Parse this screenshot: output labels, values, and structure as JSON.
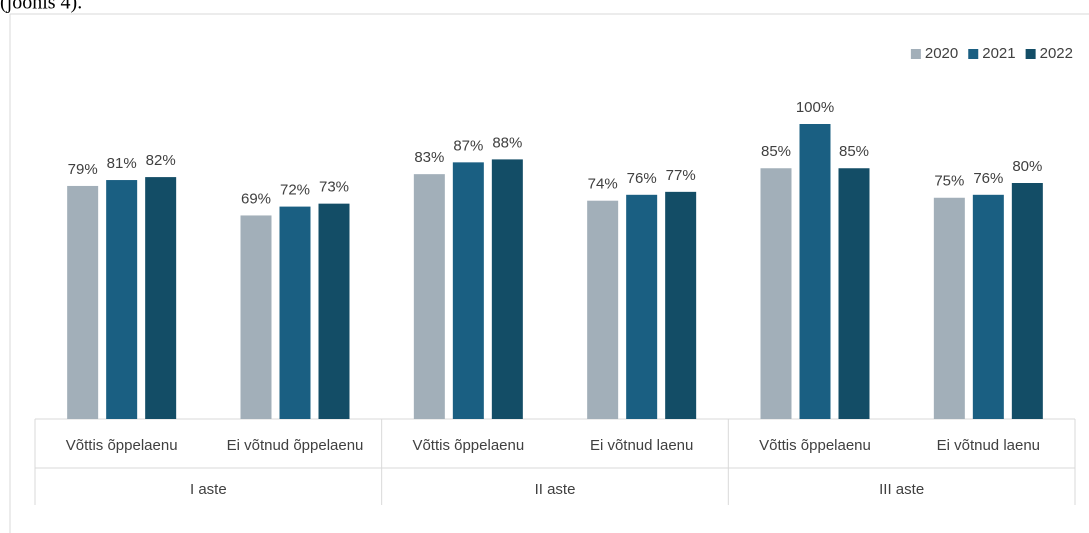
{
  "caption": "(joonis 4).",
  "chart_data": {
    "type": "bar",
    "groups": [
      {
        "name": "I aste",
        "categories": [
          "Võttis õppelaenu",
          "Ei võtnud õppelaenu"
        ]
      },
      {
        "name": "II aste",
        "categories": [
          "Võttis õppelaenu",
          "Ei võtnud laenu"
        ]
      },
      {
        "name": "III aste",
        "categories": [
          "Võttis õppelaenu",
          "Ei võtnud laenu"
        ]
      }
    ],
    "series": [
      {
        "name": "2020",
        "color": "#a2afb9",
        "values": [
          79,
          69,
          83,
          74,
          85,
          75
        ],
        "value_labels": [
          "79%",
          "69%",
          "83%",
          "74%",
          "85%",
          "75%"
        ]
      },
      {
        "name": "2021",
        "color": "#1a5f82",
        "values": [
          81,
          72,
          87,
          76,
          100,
          76
        ],
        "value_labels": [
          "81%",
          "72%",
          "87%",
          "76%",
          "100%",
          "76%"
        ]
      },
      {
        "name": "2022",
        "color": "#134d66",
        "values": [
          82,
          73,
          88,
          77,
          85,
          80
        ],
        "value_labels": [
          "82%",
          "73%",
          "88%",
          "77%",
          "85%",
          "80%"
        ]
      }
    ],
    "ylim": [
      0,
      100
    ],
    "legend": "top-right"
  }
}
